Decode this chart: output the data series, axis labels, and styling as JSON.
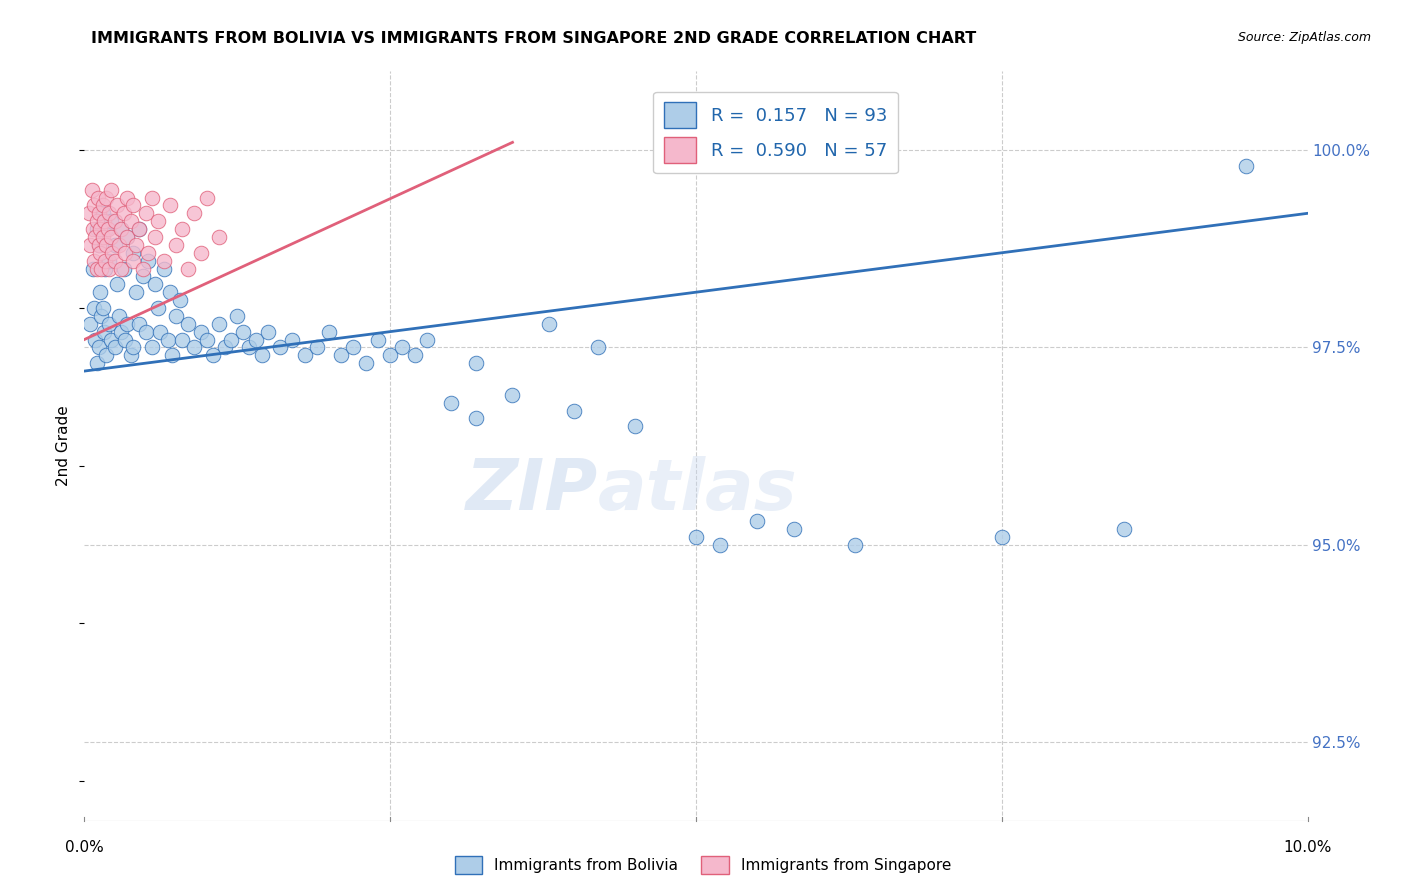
{
  "title": "IMMIGRANTS FROM BOLIVIA VS IMMIGRANTS FROM SINGAPORE 2ND GRADE CORRELATION CHART",
  "source": "Source: ZipAtlas.com",
  "ylabel_label": "2nd Grade",
  "x_min": 0.0,
  "x_max": 10.0,
  "y_min": 91.5,
  "y_max": 101.0,
  "y_ticks": [
    92.5,
    95.0,
    97.5,
    100.0
  ],
  "y_tick_labels": [
    "92.5%",
    "95.0%",
    "97.5%",
    "100.0%"
  ],
  "legend_r_bolivia": "0.157",
  "legend_n_bolivia": "93",
  "legend_r_singapore": "0.590",
  "legend_n_singapore": "57",
  "bolivia_color": "#aecde8",
  "singapore_color": "#f5b8cc",
  "line_bolivia_color": "#3070b8",
  "line_singapore_color": "#e0607a",
  "bolivia_line_x": [
    0.0,
    10.0
  ],
  "bolivia_line_y": [
    97.2,
    99.2
  ],
  "singapore_line_x": [
    0.0,
    3.5
  ],
  "singapore_line_y": [
    97.6,
    100.1
  ],
  "bolivia_scatter_x": [
    0.05,
    0.07,
    0.08,
    0.09,
    0.1,
    0.1,
    0.12,
    0.12,
    0.13,
    0.14,
    0.15,
    0.15,
    0.16,
    0.17,
    0.18,
    0.18,
    0.2,
    0.2,
    0.22,
    0.22,
    0.25,
    0.25,
    0.27,
    0.28,
    0.3,
    0.3,
    0.32,
    0.33,
    0.35,
    0.35,
    0.38,
    0.4,
    0.4,
    0.42,
    0.45,
    0.45,
    0.48,
    0.5,
    0.52,
    0.55,
    0.58,
    0.6,
    0.62,
    0.65,
    0.68,
    0.7,
    0.72,
    0.75,
    0.78,
    0.8,
    0.85,
    0.9,
    0.95,
    1.0,
    1.05,
    1.1,
    1.15,
    1.2,
    1.25,
    1.3,
    1.35,
    1.4,
    1.45,
    1.5,
    1.6,
    1.7,
    1.8,
    1.9,
    2.0,
    2.1,
    2.2,
    2.3,
    2.4,
    2.5,
    2.6,
    2.7,
    2.8,
    3.0,
    3.2,
    3.5,
    4.0,
    4.5,
    5.0,
    5.2,
    5.5,
    5.8,
    6.3,
    7.5,
    8.5,
    9.5,
    3.2,
    3.8,
    4.2
  ],
  "bolivia_scatter_y": [
    97.8,
    98.5,
    98.0,
    97.6,
    99.0,
    97.3,
    98.8,
    97.5,
    98.2,
    97.9,
    99.2,
    98.0,
    97.7,
    98.5,
    99.0,
    97.4,
    98.6,
    97.8,
    99.1,
    97.6,
    98.8,
    97.5,
    98.3,
    97.9,
    99.0,
    97.7,
    98.5,
    97.6,
    98.9,
    97.8,
    97.4,
    98.7,
    97.5,
    98.2,
    99.0,
    97.8,
    98.4,
    97.7,
    98.6,
    97.5,
    98.3,
    98.0,
    97.7,
    98.5,
    97.6,
    98.2,
    97.4,
    97.9,
    98.1,
    97.6,
    97.8,
    97.5,
    97.7,
    97.6,
    97.4,
    97.8,
    97.5,
    97.6,
    97.9,
    97.7,
    97.5,
    97.6,
    97.4,
    97.7,
    97.5,
    97.6,
    97.4,
    97.5,
    97.7,
    97.4,
    97.5,
    97.3,
    97.6,
    97.4,
    97.5,
    97.4,
    97.6,
    96.8,
    96.6,
    96.9,
    96.7,
    96.5,
    95.1,
    95.0,
    95.3,
    95.2,
    95.0,
    95.1,
    95.2,
    99.8,
    97.3,
    97.8,
    97.5
  ],
  "singapore_scatter_x": [
    0.04,
    0.05,
    0.06,
    0.07,
    0.08,
    0.08,
    0.09,
    0.1,
    0.1,
    0.11,
    0.12,
    0.12,
    0.13,
    0.13,
    0.14,
    0.15,
    0.15,
    0.16,
    0.17,
    0.18,
    0.18,
    0.19,
    0.2,
    0.2,
    0.22,
    0.22,
    0.23,
    0.25,
    0.25,
    0.27,
    0.28,
    0.3,
    0.3,
    0.32,
    0.33,
    0.35,
    0.35,
    0.38,
    0.4,
    0.4,
    0.42,
    0.45,
    0.48,
    0.5,
    0.52,
    0.55,
    0.58,
    0.6,
    0.65,
    0.7,
    0.75,
    0.8,
    0.85,
    0.9,
    0.95,
    1.0,
    1.1
  ],
  "singapore_scatter_y": [
    99.2,
    98.8,
    99.5,
    99.0,
    98.6,
    99.3,
    98.9,
    99.1,
    98.5,
    99.4,
    98.8,
    99.2,
    98.7,
    99.0,
    98.5,
    99.3,
    98.9,
    99.1,
    98.6,
    99.4,
    98.8,
    99.0,
    98.5,
    99.2,
    98.9,
    99.5,
    98.7,
    99.1,
    98.6,
    99.3,
    98.8,
    99.0,
    98.5,
    99.2,
    98.7,
    99.4,
    98.9,
    99.1,
    98.6,
    99.3,
    98.8,
    99.0,
    98.5,
    99.2,
    98.7,
    99.4,
    98.9,
    99.1,
    98.6,
    99.3,
    98.8,
    99.0,
    98.5,
    99.2,
    98.7,
    99.4,
    98.9
  ]
}
